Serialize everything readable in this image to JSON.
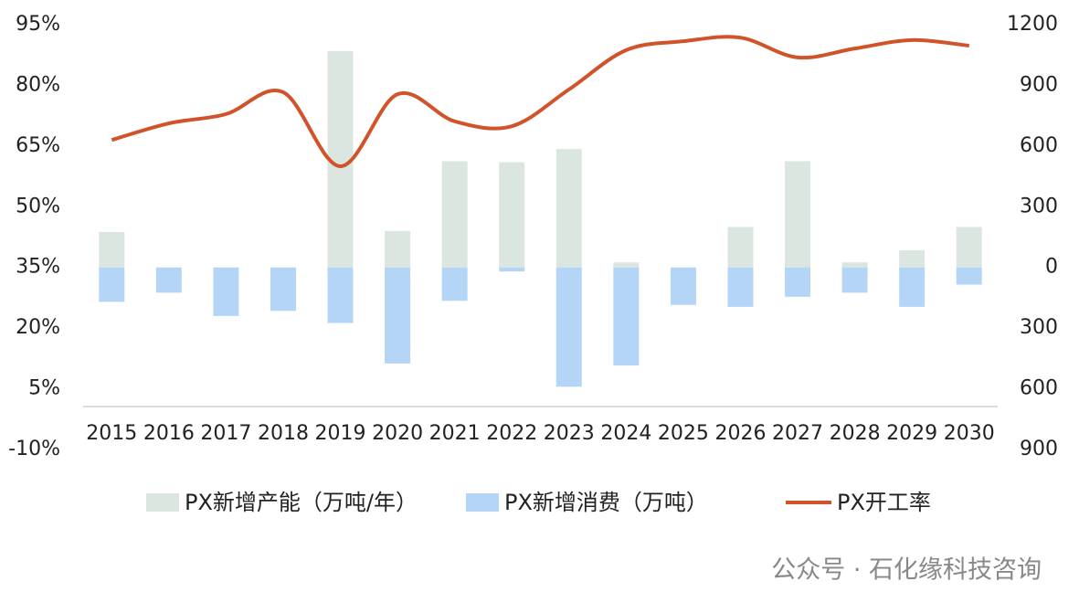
{
  "chart_data": {
    "type": "bar_line",
    "categories": [
      "2015",
      "2016",
      "2017",
      "2018",
      "2019",
      "2020",
      "2021",
      "2022",
      "2023",
      "2024",
      "2025",
      "2026",
      "2027",
      "2028",
      "2029",
      "2030"
    ],
    "series": [
      {
        "name": "PX新增产能（万吨/年）",
        "color": "#dce6e1",
        "axis": "y2",
        "type": "bar",
        "values": [
          175,
          0,
          0,
          0,
          1070,
          180,
          525,
          520,
          585,
          25,
          0,
          200,
          525,
          25,
          85,
          200
        ]
      },
      {
        "name": "PX新增消费（万吨）",
        "color": "#b4d5f6",
        "axis": "y2",
        "type": "bar",
        "values": [
          -170,
          -125,
          -240,
          -215,
          -275,
          -475,
          -165,
          -20,
          -590,
          -485,
          -185,
          -195,
          -145,
          -125,
          -195,
          -85
        ]
      },
      {
        "name": "PX开工率",
        "color": "#d0532a",
        "type": "line",
        "values": [
          66.5,
          70.6,
          72.9,
          78.3,
          60,
          77.8,
          71.1,
          69.9,
          79,
          88.7,
          90.9,
          91.8,
          86.9,
          89.1,
          91.2,
          89.8
        ]
      }
    ],
    "ylim": [
      -10,
      95
    ],
    "yticks": [
      {
        "value": 95,
        "label": "95%"
      },
      {
        "value": 80,
        "label": "80%"
      },
      {
        "value": 65,
        "label": "65%"
      },
      {
        "value": 50,
        "label": "50%"
      },
      {
        "value": 35,
        "label": "35%"
      },
      {
        "value": 20,
        "label": "20%"
      },
      {
        "value": 5,
        "label": "5%"
      },
      {
        "value": -10,
        "label": "-10%"
      }
    ],
    "y2lim": [
      -900,
      1200
    ],
    "y2ticks": [
      1200,
      900,
      600,
      300,
      0,
      {
        "value": -300,
        "label": "300"
      },
      {
        "value": -600,
        "label": "600"
      },
      {
        "value": -900,
        "label": "900"
      }
    ],
    "legend": "bottom",
    "watermark": "公众号 · 石化缘科技咨询"
  }
}
